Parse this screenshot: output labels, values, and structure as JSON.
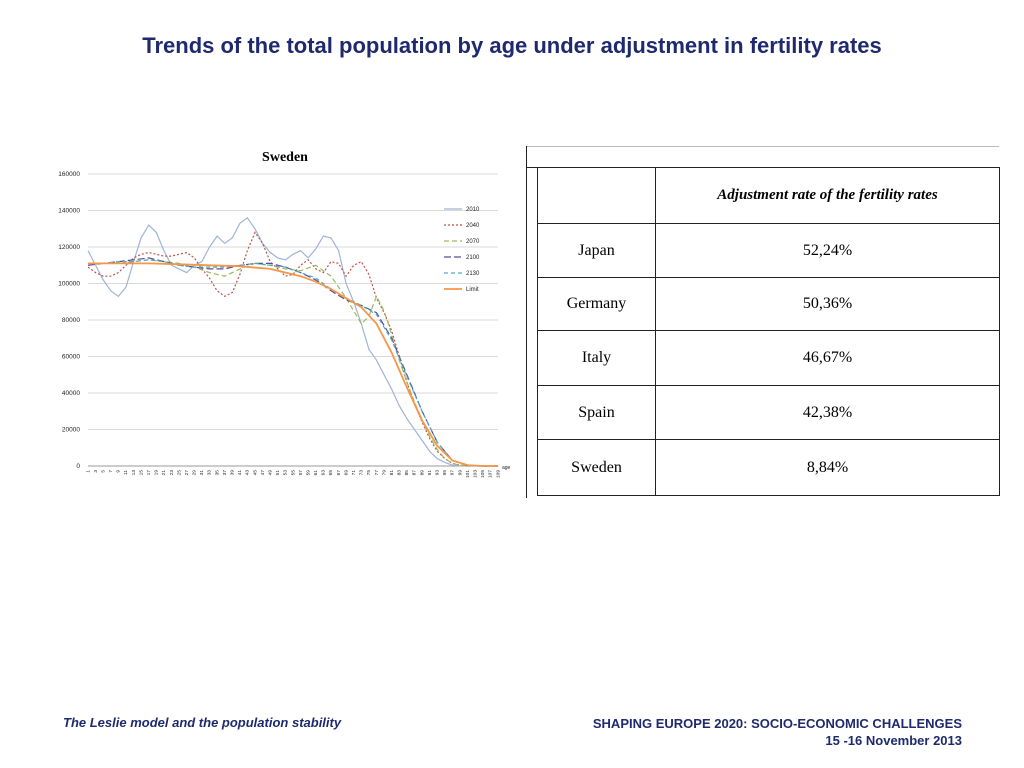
{
  "slide": {
    "title": "Trends of the total population by age under adjustment in fertility rates"
  },
  "chart_data": {
    "type": "line",
    "title": "Sweden",
    "xlabel": "age",
    "ylabel": "",
    "ylim": [
      0,
      160000
    ],
    "xlim": [
      1,
      109
    ],
    "y_ticks": [
      0,
      20000,
      40000,
      60000,
      80000,
      100000,
      120000,
      140000,
      160000
    ],
    "y_tick_labels": [
      "0",
      "20000",
      "40000",
      "60000",
      "80000",
      "100000",
      "120000",
      "140000",
      "160000"
    ],
    "x_ticks": [
      1,
      3,
      5,
      7,
      9,
      11,
      13,
      15,
      17,
      19,
      21,
      23,
      25,
      27,
      29,
      31,
      33,
      35,
      37,
      39,
      41,
      43,
      45,
      47,
      49,
      51,
      53,
      55,
      57,
      59,
      61,
      63,
      65,
      67,
      69,
      71,
      73,
      75,
      77,
      79,
      81,
      83,
      85,
      87,
      89,
      91,
      93,
      95,
      97,
      99,
      101,
      103,
      105,
      107,
      109
    ],
    "grid": true,
    "legend_position": "right",
    "series": [
      {
        "name": "2010",
        "color": "#9fb4d8",
        "dash": "solid",
        "x": [
          1,
          3,
          5,
          7,
          9,
          11,
          13,
          15,
          17,
          19,
          21,
          23,
          25,
          27,
          29,
          31,
          33,
          35,
          37,
          39,
          41,
          43,
          45,
          47,
          49,
          51,
          53,
          55,
          57,
          59,
          61,
          63,
          65,
          67,
          69,
          71,
          73,
          75,
          77,
          79,
          81,
          83,
          85,
          87,
          89,
          91,
          93,
          95,
          97,
          99,
          101,
          105,
          109
        ],
        "y": [
          118000,
          110000,
          102000,
          96000,
          93000,
          98000,
          112000,
          125000,
          132000,
          128000,
          118000,
          110000,
          108000,
          106000,
          110000,
          112000,
          120000,
          126000,
          122000,
          125000,
          133000,
          136000,
          130000,
          122000,
          117000,
          114000,
          113000,
          116000,
          118000,
          114000,
          119000,
          126000,
          125000,
          118000,
          100000,
          90000,
          78000,
          64000,
          58000,
          50000,
          42000,
          33000,
          26000,
          20000,
          14000,
          8000,
          4000,
          2000,
          500,
          100,
          0,
          0,
          0
        ]
      },
      {
        "name": "2040",
        "color": "#c0504d",
        "dash": "2,2",
        "x": [
          1,
          3,
          5,
          7,
          9,
          11,
          13,
          15,
          17,
          19,
          21,
          23,
          25,
          27,
          29,
          31,
          33,
          35,
          37,
          39,
          41,
          43,
          45,
          47,
          49,
          51,
          53,
          55,
          57,
          59,
          61,
          63,
          65,
          67,
          69,
          71,
          73,
          75,
          77,
          79,
          81,
          83,
          85,
          87,
          89,
          91,
          93,
          95,
          97,
          99,
          101,
          105,
          109
        ],
        "y": [
          109000,
          106000,
          104000,
          104000,
          106000,
          110000,
          114000,
          116000,
          117000,
          116000,
          115000,
          115000,
          116000,
          117000,
          114000,
          108000,
          103000,
          96000,
          93000,
          95000,
          105000,
          118000,
          128000,
          122000,
          112000,
          108000,
          104000,
          105000,
          110000,
          113000,
          108000,
          106000,
          112000,
          111000,
          104000,
          110000,
          112000,
          105000,
          92000,
          84000,
          74000,
          60000,
          46000,
          34000,
          24000,
          15000,
          8000,
          4000,
          1500,
          400,
          100,
          0,
          0
        ]
      },
      {
        "name": "2070",
        "color": "#9bbb59",
        "dash": "5,3",
        "x": [
          1,
          5,
          9,
          13,
          17,
          21,
          25,
          29,
          33,
          37,
          41,
          45,
          49,
          53,
          57,
          61,
          65,
          69,
          73,
          75,
          77,
          79,
          81,
          83,
          85,
          87,
          89,
          91,
          93,
          95,
          97,
          99,
          101,
          105,
          109
        ],
        "y": [
          110000,
          111000,
          111000,
          112000,
          113000,
          112000,
          111000,
          109000,
          106000,
          104000,
          108000,
          111000,
          110000,
          108000,
          107000,
          110000,
          104000,
          92000,
          78000,
          82000,
          93000,
          85000,
          72000,
          58000,
          46000,
          35000,
          25000,
          16000,
          9000,
          4000,
          1500,
          400,
          100,
          0,
          0
        ]
      },
      {
        "name": "2100",
        "color": "#5b4a9a",
        "dash": "7,3",
        "x": [
          1,
          5,
          9,
          13,
          17,
          21,
          25,
          29,
          33,
          37,
          41,
          45,
          49,
          53,
          57,
          61,
          65,
          69,
          73,
          77,
          81,
          85,
          89,
          93,
          97,
          101,
          105,
          109
        ],
        "y": [
          110000,
          111000,
          112000,
          113000,
          114000,
          112000,
          110000,
          109000,
          108000,
          108000,
          110000,
          111000,
          111000,
          109000,
          106000,
          102000,
          96000,
          91000,
          88000,
          84000,
          70000,
          50000,
          30000,
          13000,
          3000,
          300,
          0,
          0
        ]
      },
      {
        "name": "2130",
        "color": "#4bacc6",
        "dash": "4,3",
        "x": [
          1,
          5,
          9,
          13,
          17,
          21,
          25,
          29,
          33,
          37,
          41,
          45,
          49,
          53,
          57,
          61,
          65,
          69,
          73,
          77,
          81,
          85,
          89,
          93,
          97,
          101,
          105,
          109
        ],
        "y": [
          111000,
          111000,
          112000,
          112000,
          113000,
          112000,
          110000,
          109000,
          109000,
          109000,
          110000,
          111000,
          110000,
          109000,
          106000,
          103000,
          97000,
          92000,
          88000,
          83000,
          69000,
          49000,
          30000,
          13000,
          3000,
          300,
          0,
          0
        ]
      },
      {
        "name": "Limit",
        "color": "#f79646",
        "dash": "solid",
        "x": [
          1,
          9,
          17,
          25,
          33,
          41,
          49,
          57,
          61,
          65,
          69,
          73,
          77,
          81,
          85,
          89,
          93,
          97,
          101,
          105,
          109
        ],
        "y": [
          111000,
          111000,
          111000,
          110500,
          110000,
          109500,
          108000,
          104000,
          101000,
          97000,
          92000,
          87000,
          78000,
          62000,
          43000,
          25000,
          11000,
          3000,
          500,
          0,
          0
        ]
      }
    ]
  },
  "table": {
    "header": {
      "country": "",
      "rate": "Adjustment rate of the fertility rates"
    },
    "rows": [
      {
        "country": "Japan",
        "rate": "52,24%"
      },
      {
        "country": "Germany",
        "rate": "50,36%"
      },
      {
        "country": "Italy",
        "rate": "46,67%"
      },
      {
        "country": "Spain",
        "rate": "42,38%"
      },
      {
        "country": "Sweden",
        "rate": "8,84%"
      }
    ]
  },
  "footer": {
    "left": "The Leslie model and the population stability",
    "right_line1": "SHAPING EUROPE 2020: SOCIO-ECONOMIC CHALLENGES",
    "right_line2": "15 -16 November 2013"
  }
}
